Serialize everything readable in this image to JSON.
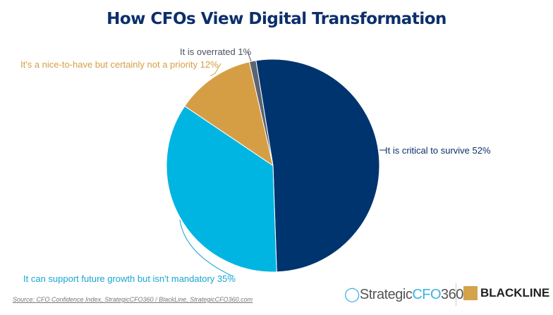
{
  "chart_data": {
    "type": "pie",
    "title": "How CFOs View Digital Transformation",
    "slices": [
      {
        "label": "It is critical to survive",
        "value": 52,
        "color": "#00346f",
        "label_text": "It is critical to survive 52%"
      },
      {
        "label": "It can support future growth but isn't mandatory",
        "value": 35,
        "color": "#00b5e2",
        "label_text": "It can support future growth but isn't mandatory 35%"
      },
      {
        "label": "It's a nice-to-have but certainly not a priority",
        "value": 12,
        "color": "#d69e44",
        "label_text": "It's a nice-to-have but certainly not a priority 12%"
      },
      {
        "label": "It is overrated",
        "value": 1,
        "color": "#5a6472",
        "label_text": "It is overrated 1%"
      }
    ]
  },
  "source": "Source: CFO Confidence Index, StrategicCFO360 / BlackLine, StrategicCFO360.com",
  "logos": {
    "strategic_a": "Strategic",
    "strategic_b": "CFO",
    "strategic_c": "360",
    "blackline": "BLACKLINE"
  }
}
